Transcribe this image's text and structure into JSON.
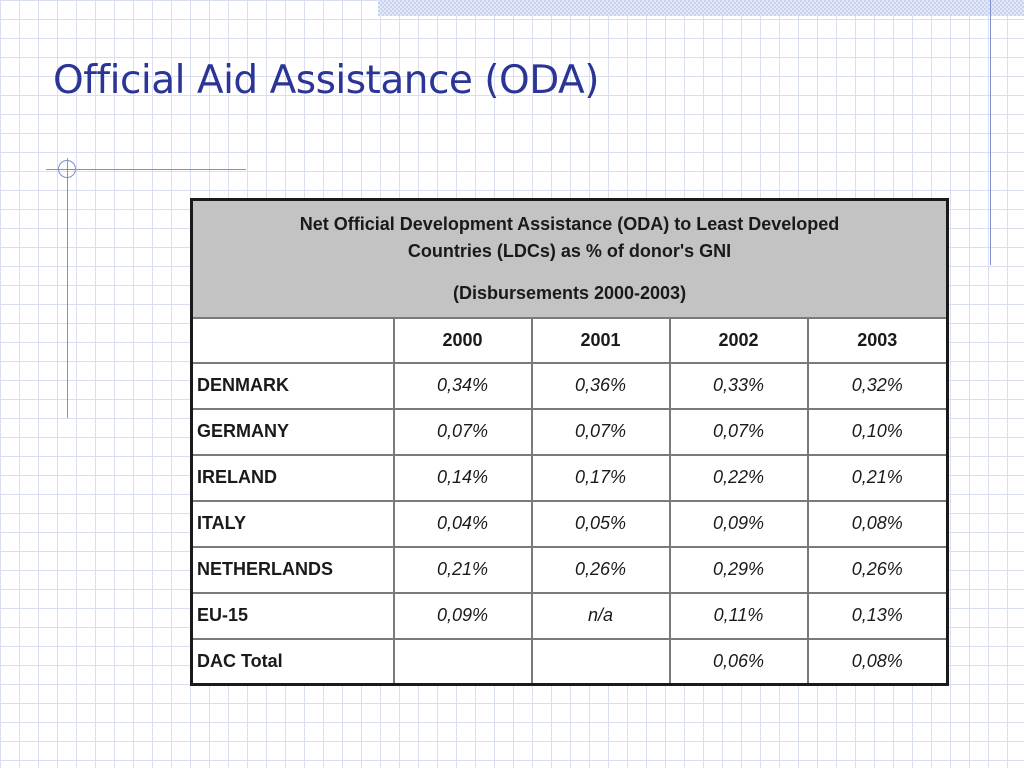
{
  "slide": {
    "title": "Official Aid Assistance (ODA)"
  },
  "table": {
    "caption_line1": "Net Official Development Assistance (ODA) to Least Developed",
    "caption_line2": "Countries (LDCs) as % of donor's GNI",
    "caption_line3": "(Disbursements 2000-2003)",
    "years": [
      "2000",
      "2001",
      "2002",
      "2003"
    ],
    "rows": [
      {
        "country": "DENMARK",
        "values": [
          "0,34%",
          "0,36%",
          "0,33%",
          "0,32%"
        ]
      },
      {
        "country": "GERMANY",
        "values": [
          "0,07%",
          "0,07%",
          "0,07%",
          "0,10%"
        ]
      },
      {
        "country": "IRELAND",
        "values": [
          "0,14%",
          "0,17%",
          "0,22%",
          "0,21%"
        ]
      },
      {
        "country": "ITALY",
        "values": [
          "0,04%",
          "0,05%",
          "0,09%",
          "0,08%"
        ]
      },
      {
        "country": "NETHERLANDS",
        "values": [
          "0,21%",
          "0,26%",
          "0,29%",
          "0,26%"
        ]
      },
      {
        "country": "EU-15",
        "values": [
          "0,09%",
          "n/a",
          "0,11%",
          "0,13%"
        ]
      },
      {
        "country": "DAC Total",
        "values": [
          "",
          "",
          "0,06%",
          "0,08%"
        ]
      }
    ]
  },
  "colors": {
    "title": "#2b3596",
    "accent_line": "#7f8fd0",
    "caption_bg": "#c3c3c3",
    "grid": "#d9dff0"
  }
}
